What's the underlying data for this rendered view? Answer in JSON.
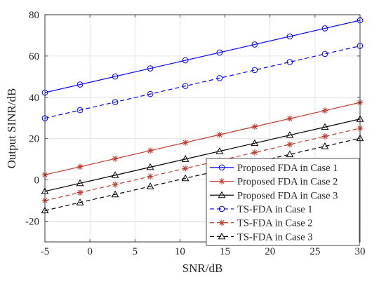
{
  "chart_data": {
    "type": "line",
    "title": "",
    "xlabel": "SNR/dB",
    "ylabel": "Output SINR/dB",
    "xlim": [
      -5,
      30
    ],
    "ylim": [
      -30,
      80
    ],
    "xticks": [
      -5,
      0,
      5,
      10,
      15,
      20,
      25,
      30
    ],
    "yticks": [
      -20,
      0,
      20,
      40,
      60,
      80
    ],
    "grid": true,
    "legend_position": "bottom-right",
    "x": [
      -5,
      -1.1,
      2.8,
      6.7,
      10.6,
      14.4,
      18.3,
      22.2,
      26.1,
      30
    ],
    "series": [
      {
        "name": "Proposed FDA in Case 1",
        "color": "#0000ff",
        "dash": "solid",
        "marker": "circle",
        "values": [
          42.3,
          46.2,
          50.1,
          54.0,
          57.9,
          61.7,
          65.6,
          69.5,
          73.4,
          77.3
        ]
      },
      {
        "name": "Proposed FDA in Case 2",
        "color": "#c0392b",
        "dash": "solid",
        "marker": "star",
        "values": [
          2.5,
          6.4,
          10.3,
          14.2,
          18.1,
          21.9,
          25.8,
          29.7,
          33.6,
          37.5
        ]
      },
      {
        "name": "Proposed FDA in Case 3",
        "color": "#000000",
        "dash": "solid",
        "marker": "triangle",
        "values": [
          -5.5,
          -1.6,
          2.3,
          6.2,
          10.1,
          13.9,
          17.8,
          21.7,
          25.6,
          29.5
        ]
      },
      {
        "name": "TS-FDA in Case 1",
        "color": "#0000ff",
        "dash": "dashed",
        "marker": "circle",
        "values": [
          29.9,
          33.8,
          37.7,
          41.6,
          45.5,
          49.3,
          53.2,
          57.1,
          61.0,
          64.9
        ]
      },
      {
        "name": "TS-FDA in Case 2",
        "color": "#c0392b",
        "dash": "dashed",
        "marker": "star",
        "values": [
          -10.0,
          -6.1,
          -2.2,
          1.7,
          5.6,
          9.4,
          13.3,
          17.2,
          21.1,
          25.0
        ]
      },
      {
        "name": "TS-FDA in Case 3",
        "color": "#000000",
        "dash": "dashed",
        "marker": "triangle",
        "values": [
          -14.8,
          -10.9,
          -7.0,
          -3.1,
          0.8,
          4.6,
          8.5,
          12.4,
          16.3,
          20.2
        ]
      }
    ]
  }
}
